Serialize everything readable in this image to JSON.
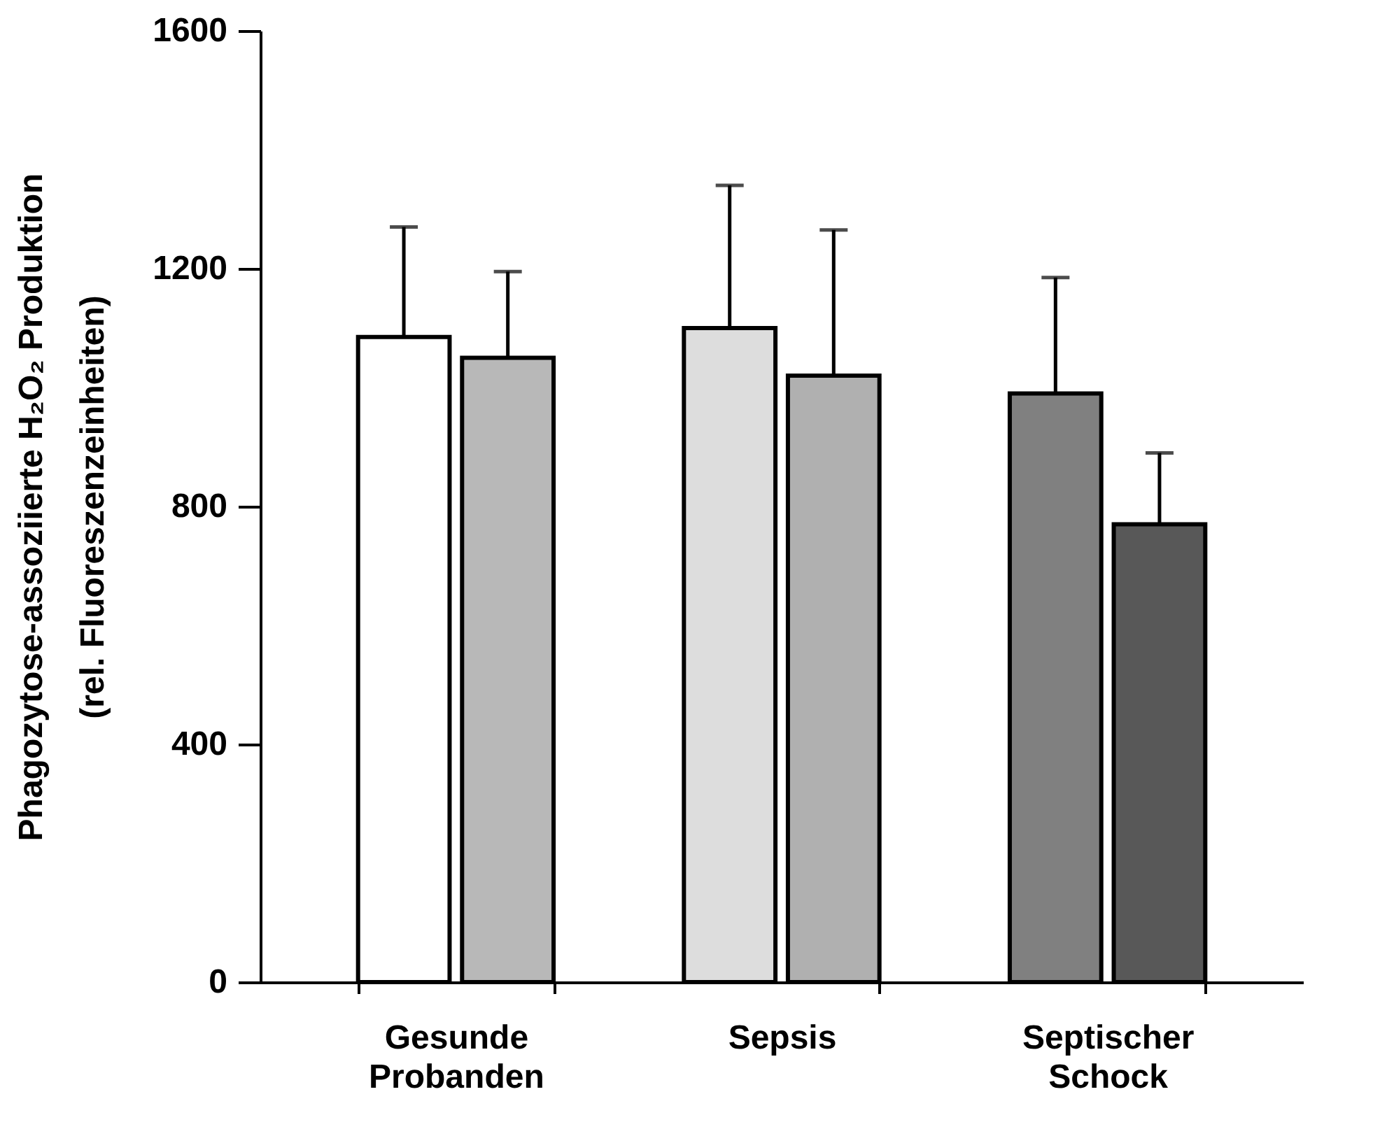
{
  "chart_data": {
    "type": "bar",
    "ylabel": "Phagozytose-assoziierte H₂O₂ Produktion\n(rel. Fluoreszenzeinheiten)",
    "categories": [
      "Gesunde Probanden",
      "Sepsis",
      "Septischer Schock"
    ],
    "series": [
      {
        "colors": [
          "#ffffff",
          "#dddddd",
          "#808080"
        ],
        "values": [
          1085,
          1100,
          990
        ],
        "errors": [
          [
            1085,
            1270
          ],
          [
            1100,
            1340
          ],
          [
            990,
            1185
          ]
        ]
      },
      {
        "colors": [
          "#b8b8b8",
          "#b0b0b0",
          "#585858"
        ],
        "values": [
          1050,
          1020,
          770
        ],
        "errors": [
          [
            1050,
            1195
          ],
          [
            1020,
            1265
          ],
          [
            770,
            890
          ]
        ]
      }
    ],
    "ylim": [
      0,
      1600
    ],
    "yticks": [
      0,
      400,
      800,
      1200,
      1600
    ],
    "grid": false
  }
}
